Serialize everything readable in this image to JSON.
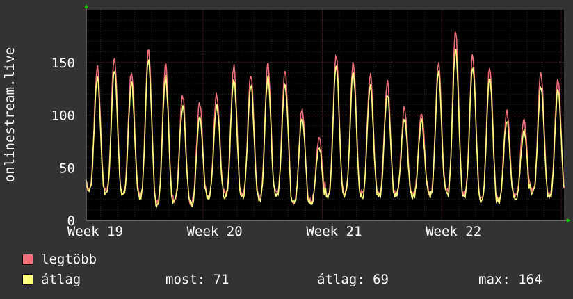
{
  "chart_data": {
    "type": "line",
    "ylabel": "onlinestream.live",
    "ylim": [
      0,
      200
    ],
    "yticks": [
      0,
      50,
      100,
      150
    ],
    "x_tick_labels": [
      "Week 19",
      "Week 20",
      "Week 21",
      "Week 22"
    ],
    "grid": true,
    "days": 28,
    "series": [
      {
        "name": "legtöbb",
        "color": "#f0707a",
        "daily_peaks": [
          145,
          155,
          142,
          162,
          147,
          118,
          112,
          120,
          146,
          138,
          147,
          141,
          105,
          78,
          157,
          149,
          138,
          131,
          107,
          103,
          148,
          178,
          156,
          145,
          104,
          96,
          140,
          133
        ],
        "daily_troughs": [
          30,
          27,
          27,
          24,
          17,
          20,
          17,
          24,
          25,
          25,
          23,
          26,
          18,
          18,
          25,
          26,
          25,
          25,
          26,
          24,
          26,
          27,
          25,
          21,
          20,
          24,
          28,
          24
        ]
      },
      {
        "name": "átlag",
        "color": "#ffff80",
        "daily_peaks": [
          135,
          143,
          130,
          152,
          136,
          108,
          100,
          110,
          134,
          128,
          136,
          128,
          97,
          70,
          148,
          140,
          127,
          120,
          97,
          95,
          140,
          163,
          147,
          135,
          95,
          85,
          128,
          124
        ],
        "daily_troughs": [
          27,
          25,
          25,
          22,
          16,
          18,
          15,
          22,
          23,
          23,
          21,
          24,
          17,
          16,
          23,
          24,
          23,
          23,
          24,
          22,
          24,
          25,
          23,
          19,
          18,
          22,
          26,
          22
        ]
      }
    ]
  },
  "legend": {
    "items": [
      {
        "label": "legtöbb",
        "color": "#f0707a"
      },
      {
        "label": "átlag",
        "color": "#ffff80"
      }
    ],
    "stats": {
      "current": "most: 71",
      "average": "átlag: 69",
      "maximum": "max: 164"
    }
  }
}
